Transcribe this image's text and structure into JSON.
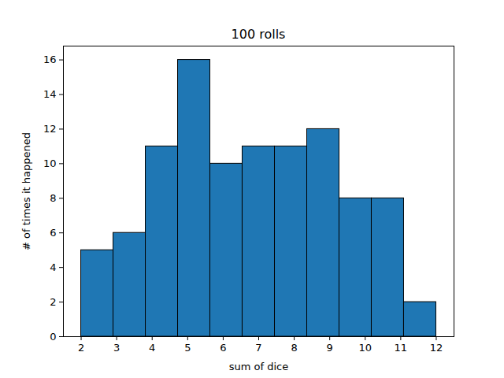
{
  "chart_data": {
    "type": "histogram",
    "title": "100 rolls",
    "xlabel": "sum of dice",
    "ylabel": "# of times it happened",
    "bins": [
      2,
      2.909,
      3.818,
      4.727,
      5.636,
      6.545,
      7.455,
      8.364,
      9.273,
      10.182,
      11.091,
      12
    ],
    "values": [
      5,
      6,
      11,
      16,
      10,
      11,
      11,
      12,
      8,
      8,
      2
    ],
    "color": "#1f77b4",
    "xlim": [
      1.5,
      12.5
    ],
    "ylim": [
      0,
      16.8
    ],
    "xticks": [
      2,
      3,
      4,
      5,
      6,
      7,
      8,
      9,
      10,
      11,
      12
    ],
    "yticks": [
      0,
      2,
      4,
      6,
      8,
      10,
      12,
      14,
      16
    ]
  }
}
